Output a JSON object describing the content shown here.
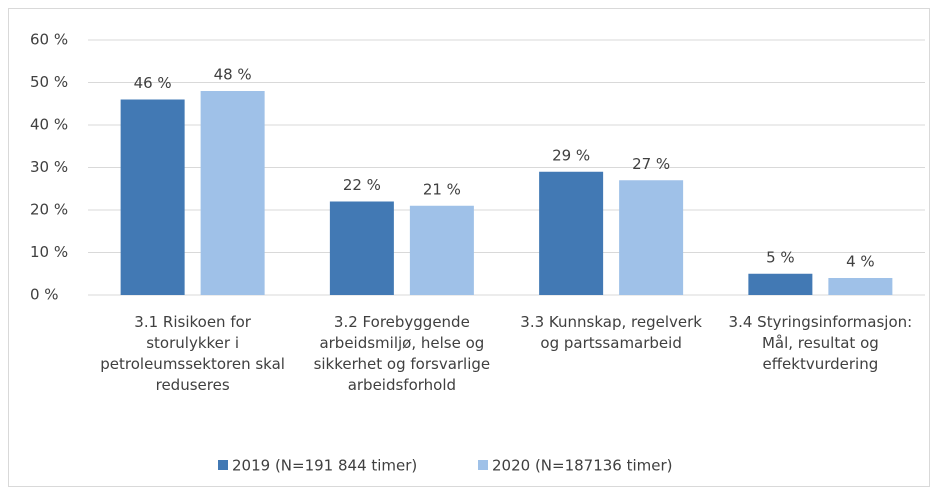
{
  "chart_data": {
    "type": "bar",
    "categories": [
      "3.1 Risikoen for storulykker i petroleumssektoren skal reduseres",
      "3.2 Forebyggende arbeidsmiljø, helse og sikkerhet og forsvarlige arbeidsforhold",
      "3.3 Kunnskap, regelverk og partssamarbeid",
      "3.4 Styringsinformasjon: Mål, resultat og effektvurdering"
    ],
    "series": [
      {
        "name": "2019 (N=191 844 timer)",
        "color": "#4279b4",
        "values": [
          46,
          22,
          29,
          5
        ],
        "value_labels": [
          "46 %",
          "22 %",
          "29 %",
          "5 %"
        ]
      },
      {
        "name": "2020 (N=187136 timer)",
        "color": "#9fc1e8",
        "values": [
          48,
          21,
          27,
          4
        ],
        "value_labels": [
          "48 %",
          "21 %",
          "27 %",
          "4 %"
        ]
      }
    ],
    "ylim": [
      0,
      60
    ],
    "yticks": [
      {
        "value": 0,
        "label": "0 %"
      },
      {
        "value": 10,
        "label": "10 %"
      },
      {
        "value": 20,
        "label": "20 %"
      },
      {
        "value": 30,
        "label": "30 %"
      },
      {
        "value": 40,
        "label": "40 %"
      },
      {
        "value": 50,
        "label": "50 %"
      },
      {
        "value": 60,
        "label": "60 %"
      }
    ],
    "grid": true
  }
}
